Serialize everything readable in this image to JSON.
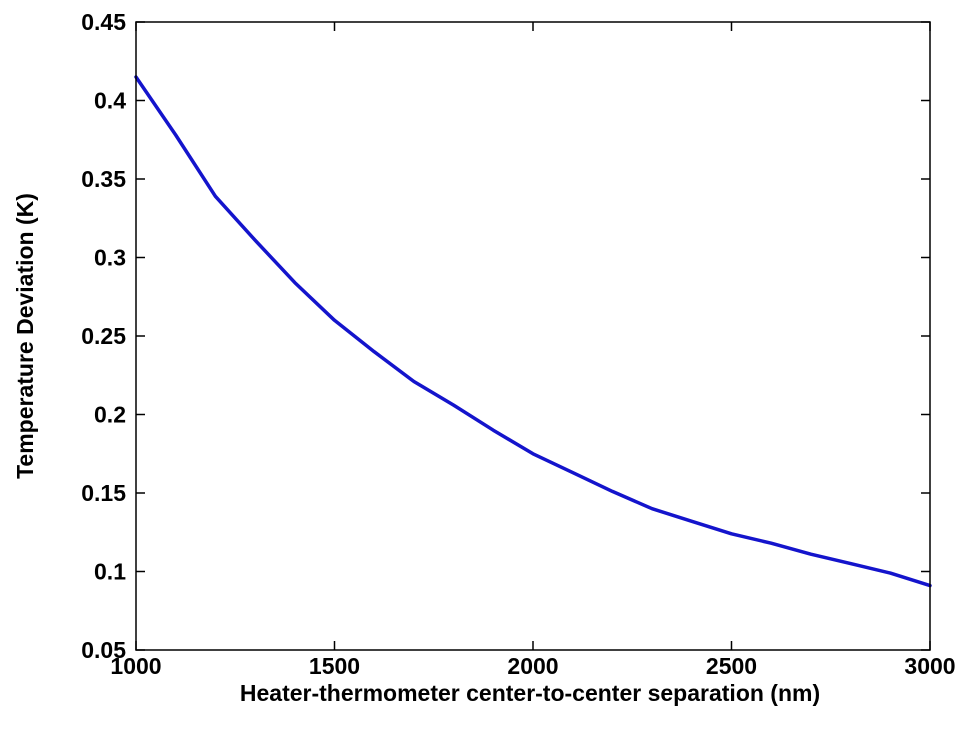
{
  "chart_data": {
    "type": "line",
    "xlabel": "Heater-thermometer center-to-center separation (nm)",
    "ylabel": "Temperature Deviation (K)",
    "xlim": [
      1000,
      3000
    ],
    "ylim": [
      0.05,
      0.45
    ],
    "xticks": [
      1000,
      1500,
      2000,
      2500,
      3000
    ],
    "xtick_labels": [
      "1000",
      "1500",
      "2000",
      "2500",
      "3000"
    ],
    "yticks": [
      0.05,
      0.1,
      0.15,
      0.2,
      0.25,
      0.3,
      0.35,
      0.4,
      0.45
    ],
    "ytick_labels": [
      "0.05",
      "0.1",
      "0.15",
      "0.2",
      "0.25",
      "0.3",
      "0.35",
      "0.4",
      "0.45"
    ],
    "grid": false,
    "series": [
      {
        "color": "#1414cc",
        "x": [
          1000,
          1100,
          1200,
          1300,
          1400,
          1500,
          1600,
          1700,
          1800,
          1900,
          2000,
          2100,
          2200,
          2300,
          2400,
          2500,
          2600,
          2700,
          2800,
          2900,
          3000
        ],
        "y": [
          0.415,
          0.378,
          0.339,
          0.311,
          0.284,
          0.26,
          0.24,
          0.221,
          0.206,
          0.19,
          0.175,
          0.163,
          0.151,
          0.14,
          0.132,
          0.124,
          0.118,
          0.111,
          0.105,
          0.099,
          0.091
        ]
      }
    ]
  }
}
